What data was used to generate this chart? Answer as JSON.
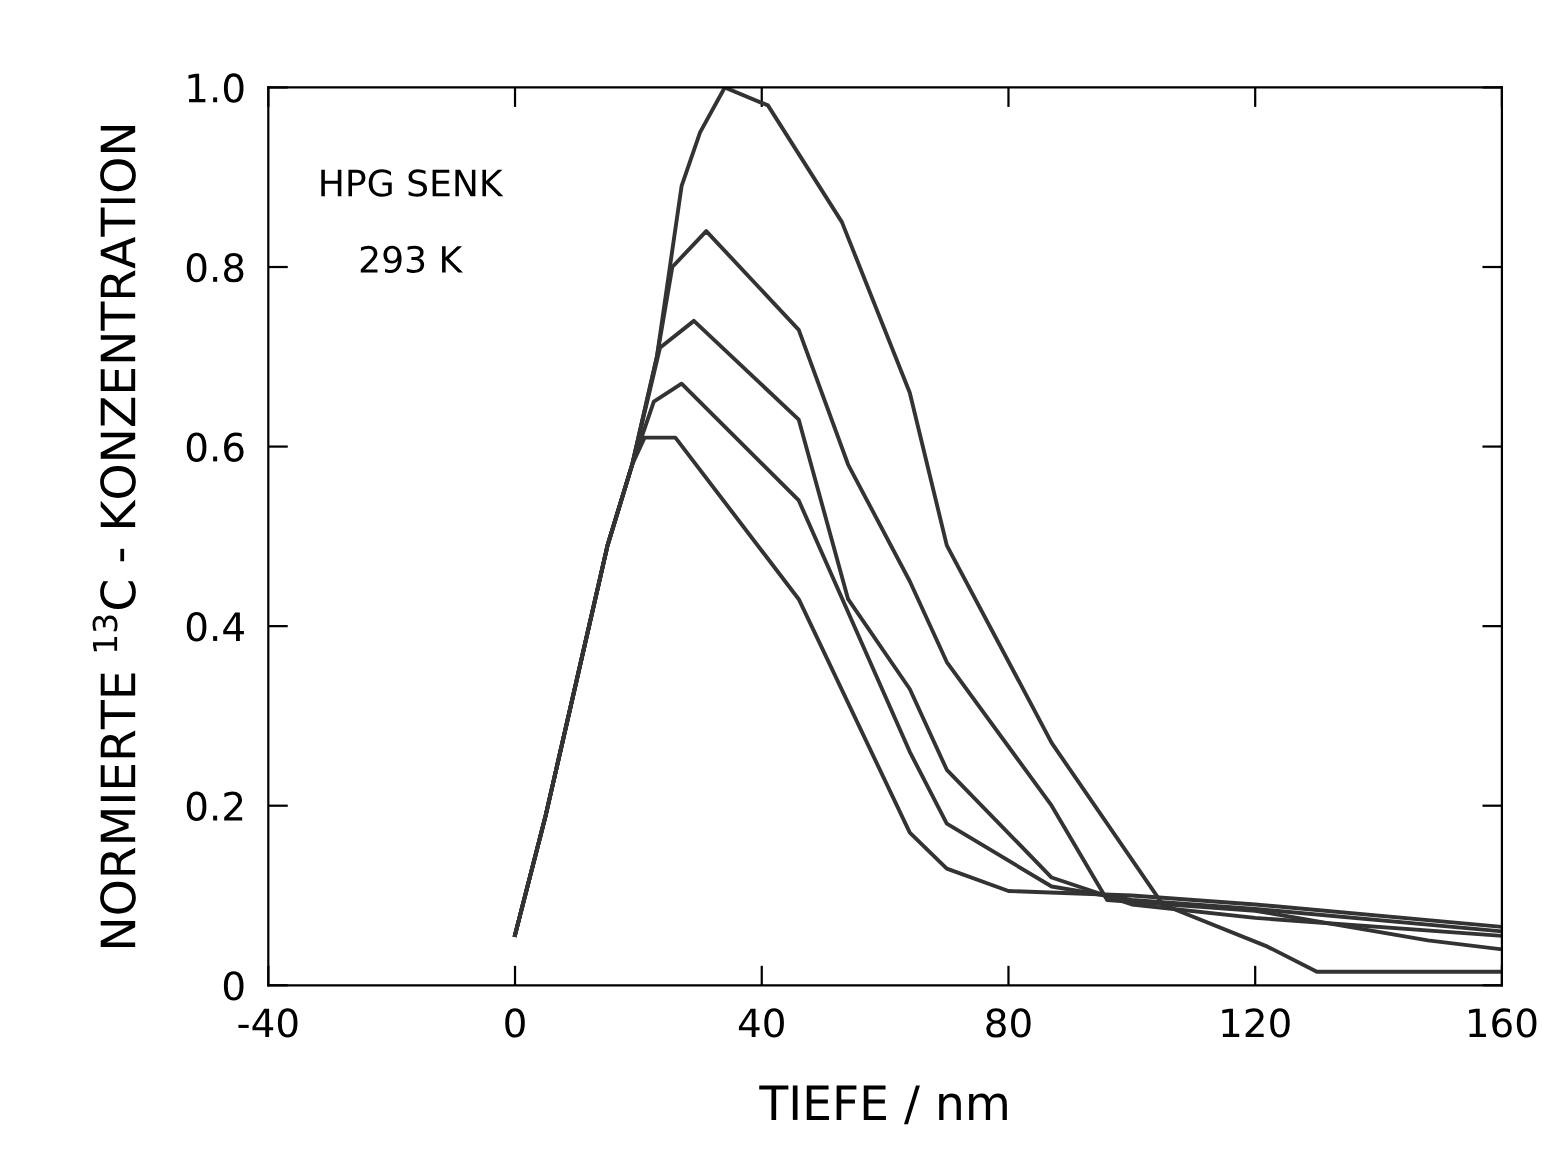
{
  "chart_data": {
    "type": "line",
    "xlabel": "TIEFE / nm",
    "ylabel": "NORMIERTE $^{13}$C - KONZENTRATION",
    "annotations": [
      "HPG SENK",
      "293 K"
    ],
    "xlim": [
      -40,
      160
    ],
    "ylim": [
      0,
      1.0
    ],
    "xticks": [
      -40,
      0,
      40,
      80,
      120,
      160
    ],
    "yticks": [
      0,
      0.2,
      0.4,
      0.6,
      0.8,
      {
        "value": 1.0,
        "label": "1.0"
      }
    ],
    "grid": false,
    "legend": false,
    "marker": "none",
    "line_style": "solid",
    "series": [
      {
        "color": "#333333",
        "x": [
          0,
          5,
          10,
          15,
          19,
          23,
          27,
          30,
          34,
          41,
          53,
          64,
          70,
          87,
          105,
          122,
          130,
          160
        ],
        "values": [
          0.056,
          0.19,
          0.34,
          0.49,
          0.58,
          0.7,
          0.89,
          0.95,
          1.0,
          0.98,
          0.85,
          0.66,
          0.49,
          0.27,
          0.09,
          0.043,
          0.015,
          0.015
        ]
      },
      {
        "color": "#333333",
        "x": [
          0,
          5,
          10,
          15,
          19,
          23,
          25.5,
          31,
          46,
          54,
          64,
          70,
          87,
          96,
          120,
          148,
          160
        ],
        "values": [
          0.056,
          0.19,
          0.34,
          0.49,
          0.58,
          0.7,
          0.8,
          0.84,
          0.73,
          0.58,
          0.45,
          0.36,
          0.2,
          0.095,
          0.083,
          0.05,
          0.04
        ]
      },
      {
        "color": "#333333",
        "x": [
          0,
          5,
          10,
          15,
          19,
          23.5,
          29,
          46,
          54,
          64,
          70,
          87,
          100,
          120,
          160
        ],
        "values": [
          0.056,
          0.19,
          0.34,
          0.49,
          0.58,
          0.71,
          0.74,
          0.63,
          0.43,
          0.33,
          0.24,
          0.12,
          0.09,
          0.075,
          0.055
        ]
      },
      {
        "color": "#333333",
        "x": [
          0,
          5,
          10,
          15,
          19,
          22.5,
          27,
          46,
          64,
          70,
          87,
          100,
          120,
          160
        ],
        "values": [
          0.056,
          0.19,
          0.34,
          0.49,
          0.58,
          0.65,
          0.67,
          0.54,
          0.26,
          0.18,
          0.11,
          0.095,
          0.085,
          0.06
        ]
      },
      {
        "color": "#333333",
        "x": [
          0,
          5,
          10,
          15,
          19,
          21,
          26,
          46,
          64,
          70,
          80,
          100,
          120,
          160
        ],
        "values": [
          0.056,
          0.19,
          0.34,
          0.49,
          0.58,
          0.61,
          0.61,
          0.43,
          0.17,
          0.13,
          0.105,
          0.1,
          0.09,
          0.065
        ]
      }
    ]
  }
}
